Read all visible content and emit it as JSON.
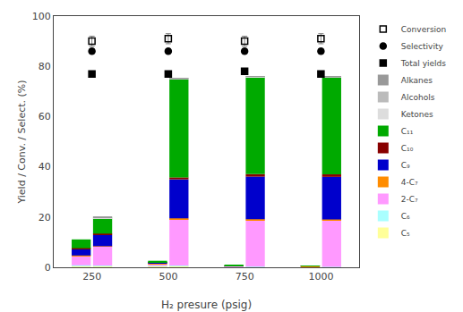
{
  "chart_data": {
    "type": "bar",
    "stacked": true,
    "categories": [
      "250",
      "500",
      "750",
      "1000"
    ],
    "xlabel": "H₂ presure (psig)",
    "ylabel": "Yield / Conv. / Select. (%)",
    "ylim": [
      0,
      100
    ],
    "yticks": [
      0,
      20,
      40,
      60,
      80,
      100
    ],
    "grid": false,
    "legend": "upper right",
    "series": [
      {
        "name": "C₅",
        "stack": "bar1",
        "color": "#FFFF99",
        "values": [
          0.4,
          0.4,
          0.1,
          0.1
        ]
      },
      {
        "name": "C₆",
        "stack": "bar1",
        "color": "#AAFFFF",
        "values": [
          0.4,
          0.2,
          0.1,
          0.1
        ]
      },
      {
        "name": "2-C₇",
        "stack": "bar1",
        "color": "#FF99FF",
        "values": [
          3.5,
          0.8,
          0.2,
          0.1
        ]
      },
      {
        "name": "4-C₇",
        "stack": "bar1",
        "color": "#FF8C00",
        "values": [
          0.4,
          0.2,
          0.1,
          0.1
        ]
      },
      {
        "name": "C₉",
        "stack": "bar1",
        "color": "#0000CC",
        "values": [
          2.5,
          0.3,
          0.1,
          0.1
        ]
      },
      {
        "name": "C₁₀",
        "stack": "bar1",
        "color": "#880000",
        "values": [
          0.4,
          0.2,
          0.1,
          0.1
        ]
      },
      {
        "name": "C₁₁",
        "stack": "bar1",
        "color": "#00AA00",
        "values": [
          3.5,
          0.5,
          0.1,
          0.1
        ]
      },
      {
        "name": "C₅",
        "stack": "bar2",
        "color": "#FFFF99",
        "values": [
          0.4,
          0.4,
          0.1,
          0.1
        ]
      },
      {
        "name": "C₆",
        "stack": "bar2",
        "color": "#AAFFFF",
        "values": [
          0.3,
          0.3,
          0.2,
          0.1
        ]
      },
      {
        "name": "2-C₇",
        "stack": "bar2",
        "color": "#FF99FF",
        "values": [
          7.5,
          18.5,
          18.5,
          18.5
        ]
      },
      {
        "name": "4-C₇",
        "stack": "bar2",
        "color": "#FF8C00",
        "values": [
          0.2,
          0.3,
          0.3,
          0.3
        ]
      },
      {
        "name": "C₉",
        "stack": "bar2",
        "color": "#0000CC",
        "values": [
          4.5,
          15.5,
          17.0,
          17.0
        ]
      },
      {
        "name": "C₁₀",
        "stack": "bar2",
        "color": "#880000",
        "values": [
          0.5,
          0.8,
          1.0,
          1.0
        ]
      },
      {
        "name": "C₁₁",
        "stack": "bar2",
        "color": "#00AA00",
        "values": [
          6.0,
          39.0,
          38.5,
          38.5
        ]
      },
      {
        "name": "Ketones",
        "stack": "bar2",
        "color": "#DDDDDD",
        "values": [
          0.3,
          0.2,
          0.2,
          0.2
        ]
      },
      {
        "name": "Alcohols",
        "stack": "bar2",
        "color": "#BBBBBB",
        "values": [
          0.2,
          0.2,
          0.2,
          0.2
        ]
      },
      {
        "name": "Alkanes",
        "stack": "bar2",
        "color": "#999999",
        "values": [
          0.1,
          0.1,
          0.1,
          0.1
        ]
      },
      {
        "name": "Total yields",
        "type": "scatter",
        "marker": "square",
        "color": "#000000",
        "values": [
          77,
          77,
          78,
          77
        ],
        "errors": [
          1,
          1,
          1,
          1
        ]
      },
      {
        "name": "Selectivity",
        "type": "scatter",
        "marker": "circle",
        "color": "#000000",
        "values": [
          86,
          86,
          86,
          86
        ],
        "errors": [
          1,
          1,
          1,
          1
        ]
      },
      {
        "name": "Conversion",
        "type": "scatter",
        "marker": "square-open",
        "color": "#000000",
        "values": [
          90,
          91,
          90,
          91
        ],
        "errors": [
          2,
          2,
          2,
          2
        ]
      }
    ]
  }
}
